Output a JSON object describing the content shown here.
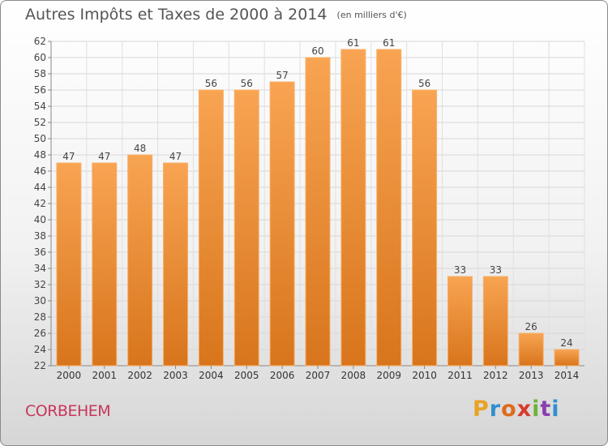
{
  "chart_data": {
    "type": "bar",
    "title": "Autres Impôts et Taxes de 2000 à 2014",
    "unit_label": "(en milliers d'€)",
    "xlabel": "",
    "ylabel": "",
    "categories": [
      "2000",
      "2001",
      "2002",
      "2003",
      "2004",
      "2005",
      "2006",
      "2007",
      "2008",
      "2009",
      "2010",
      "2011",
      "2012",
      "2013",
      "2014"
    ],
    "values": [
      47,
      47,
      48,
      47,
      56,
      56,
      57,
      60,
      61,
      61,
      56,
      33,
      33,
      26,
      24
    ],
    "ylim": [
      22,
      62
    ],
    "yticks": [
      22,
      24,
      26,
      28,
      30,
      32,
      34,
      36,
      38,
      40,
      42,
      44,
      46,
      48,
      50,
      52,
      54,
      56,
      58,
      60,
      62
    ],
    "grid": true,
    "bar_color": "#f4953d"
  },
  "footer": {
    "city": "CORBEHEM",
    "brand": "Proxiti"
  },
  "colors": {
    "city": "#c8365a",
    "brand_letters": [
      "#e8a224",
      "#2f8fcf",
      "#e06a1a",
      "#d93a2b",
      "#6fb33a",
      "#8a3fb0",
      "#2f8fcf"
    ]
  }
}
